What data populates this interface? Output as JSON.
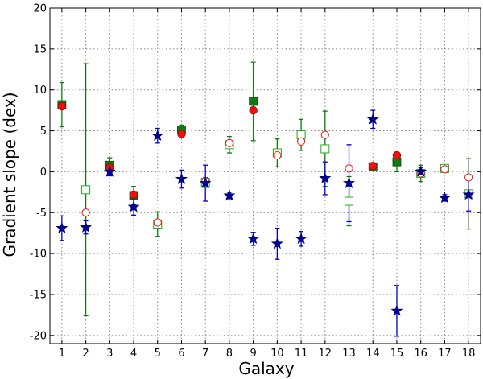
{
  "chart_data": {
    "type": "scatter",
    "title": "",
    "xlabel": "Galaxy",
    "ylabel": "Gradient slope (dex)",
    "xlim": [
      0.5,
      18.5
    ],
    "ylim": [
      -21,
      20
    ],
    "xticks": [
      1,
      2,
      3,
      4,
      5,
      6,
      7,
      8,
      9,
      10,
      11,
      12,
      13,
      14,
      15,
      16,
      17,
      18
    ],
    "yticks": [
      -20,
      -15,
      -10,
      -5,
      0,
      5,
      10,
      15,
      20
    ],
    "grid": true,
    "legend": "none",
    "series": [
      {
        "marker": "star",
        "color": "#00008b",
        "errorbar_color": "#0000cc",
        "points": [
          {
            "x": 1,
            "y": -6.9,
            "err": 1.5
          },
          {
            "x": 2,
            "y": -6.8,
            "err": 0.8
          },
          {
            "x": 3,
            "y": 0.0,
            "err": 0.5
          },
          {
            "x": 4,
            "y": -4.3,
            "err": 1.0
          },
          {
            "x": 5,
            "y": 4.4,
            "err": 0.9
          },
          {
            "x": 6,
            "y": -0.9,
            "err": 1.1
          },
          {
            "x": 7,
            "y": -1.4,
            "err": 2.2
          },
          {
            "x": 8,
            "y": -2.9,
            "err": 0.4
          },
          {
            "x": 9,
            "y": -8.2,
            "err": 0.8
          },
          {
            "x": 10,
            "y": -8.8,
            "err": 1.9
          },
          {
            "x": 11,
            "y": -8.2,
            "err": 0.9
          },
          {
            "x": 12,
            "y": -0.8,
            "err": 2.0
          },
          {
            "x": 13,
            "y": -1.4,
            "err": 4.7
          },
          {
            "x": 14,
            "y": 6.4,
            "err": 1.1
          },
          {
            "x": 15,
            "y": -17.0,
            "err": 3.1
          },
          {
            "x": 16,
            "y": 0.0,
            "err": 0.5
          },
          {
            "x": 17,
            "y": -3.2,
            "err": 0.4
          },
          {
            "x": 18,
            "y": -2.8,
            "err": 2.0
          }
        ]
      },
      {
        "marker": "circle-filled",
        "color": "#ee1111",
        "points": [
          {
            "x": 1,
            "y": 8.0
          },
          {
            "x": 3,
            "y": 0.5
          },
          {
            "x": 4,
            "y": -2.8
          },
          {
            "x": 6,
            "y": 4.6
          },
          {
            "x": 9,
            "y": 7.5
          },
          {
            "x": 14,
            "y": 0.7
          },
          {
            "x": 15,
            "y": 2.0
          }
        ]
      },
      {
        "marker": "circle-open",
        "color": "#ee1111",
        "points": [
          {
            "x": 2,
            "y": -5.0
          },
          {
            "x": 5,
            "y": -6.2
          },
          {
            "x": 7,
            "y": -1.2
          },
          {
            "x": 8,
            "y": 3.5
          },
          {
            "x": 10,
            "y": 2.0
          },
          {
            "x": 11,
            "y": 3.7
          },
          {
            "x": 12,
            "y": 4.5
          },
          {
            "x": 13,
            "y": 0.4
          },
          {
            "x": 16,
            "y": -0.2
          },
          {
            "x": 17,
            "y": 0.3
          },
          {
            "x": 18,
            "y": -0.7
          }
        ]
      },
      {
        "marker": "square-filled",
        "color": "#117a11",
        "errorbar_color": "#117a11",
        "points": [
          {
            "x": 1,
            "y": 8.2,
            "err": 2.7
          },
          {
            "x": 3,
            "y": 0.8,
            "err": 0.9
          },
          {
            "x": 4,
            "y": -2.9,
            "err": 1.1
          },
          {
            "x": 6,
            "y": 5.1,
            "err": 0.6
          },
          {
            "x": 9,
            "y": 8.6,
            "err": 4.8
          },
          {
            "x": 14,
            "y": 0.6,
            "err": 0.5
          },
          {
            "x": 15,
            "y": 1.2,
            "err": 1.2
          }
        ]
      },
      {
        "marker": "square-open",
        "color": "#117a11",
        "errorbar_color": "#117a11",
        "points": [
          {
            "x": 2,
            "y": -2.2,
            "err": 15.4
          },
          {
            "x": 5,
            "y": -6.4,
            "err": 1.5
          },
          {
            "x": 7,
            "y": -1.3,
            "err": 0.6
          },
          {
            "x": 8,
            "y": 3.3,
            "err": 1.0
          },
          {
            "x": 10,
            "y": 2.3,
            "err": 1.7
          },
          {
            "x": 11,
            "y": 4.5,
            "err": 1.9
          },
          {
            "x": 12,
            "y": 2.8,
            "err": 4.6
          },
          {
            "x": 13,
            "y": -3.6,
            "err": 3.0
          },
          {
            "x": 16,
            "y": -0.2,
            "err": 1.0
          },
          {
            "x": 17,
            "y": 0.4,
            "err": 0.4
          },
          {
            "x": 18,
            "y": -2.7,
            "err": 4.3
          }
        ]
      }
    ]
  }
}
